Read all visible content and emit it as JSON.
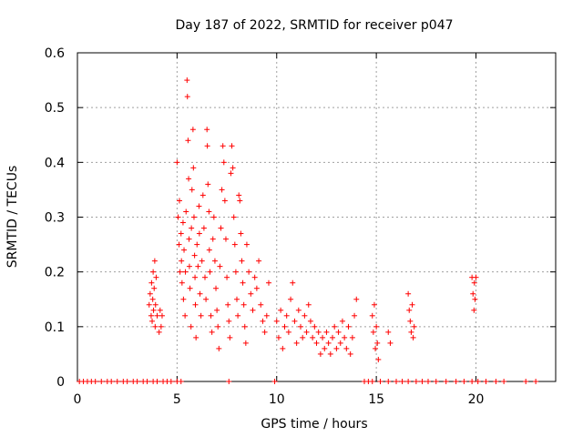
{
  "chart_data": {
    "type": "scatter",
    "title": "Day 187 of 2022, SRMTID for receiver p047",
    "xlabel": "GPS time / hours",
    "ylabel": "SRMTID / TECUs",
    "xlim": [
      0,
      24
    ],
    "ylim": [
      0,
      0.6
    ],
    "xticks": [
      0,
      5,
      10,
      15,
      20
    ],
    "xtick_labels": [
      "0",
      "5",
      "10",
      "15",
      "20"
    ],
    "yticks": [
      0,
      0.1,
      0.2,
      0.3,
      0.4,
      0.5,
      0.6
    ],
    "ytick_labels": [
      "0",
      "0.1",
      "0.2",
      "0.3",
      "0.4",
      "0.5",
      "0.6"
    ],
    "grid": true,
    "marker": "+",
    "color": "#ff0000",
    "series": [
      {
        "name": "SRMTID",
        "points": [
          [
            0.1,
            0
          ],
          [
            0.3,
            0
          ],
          [
            0.5,
            0
          ],
          [
            0.7,
            0
          ],
          [
            0.9,
            0
          ],
          [
            1.2,
            0
          ],
          [
            1.5,
            0
          ],
          [
            1.7,
            0
          ],
          [
            2.0,
            0
          ],
          [
            2.3,
            0
          ],
          [
            2.5,
            0
          ],
          [
            2.8,
            0
          ],
          [
            3.0,
            0
          ],
          [
            3.3,
            0
          ],
          [
            3.5,
            0
          ],
          [
            3.8,
            0
          ],
          [
            4.0,
            0
          ],
          [
            4.3,
            0
          ],
          [
            4.5,
            0
          ],
          [
            4.7,
            0
          ],
          [
            5.0,
            0
          ],
          [
            5.2,
            0
          ],
          [
            7.6,
            0
          ],
          [
            9.9,
            0
          ],
          [
            14.4,
            0
          ],
          [
            14.6,
            0
          ],
          [
            14.8,
            0
          ],
          [
            15.2,
            0
          ],
          [
            15.6,
            0
          ],
          [
            16.0,
            0
          ],
          [
            16.3,
            0
          ],
          [
            16.6,
            0
          ],
          [
            17.0,
            0
          ],
          [
            17.3,
            0
          ],
          [
            17.6,
            0
          ],
          [
            18.0,
            0
          ],
          [
            18.5,
            0
          ],
          [
            19.0,
            0
          ],
          [
            19.4,
            0
          ],
          [
            19.8,
            0
          ],
          [
            20.1,
            0
          ],
          [
            20.5,
            0
          ],
          [
            21.0,
            0
          ],
          [
            21.4,
            0
          ],
          [
            22.5,
            0
          ],
          [
            23.0,
            0
          ],
          [
            3.6,
            0.14
          ],
          [
            3.65,
            0.16
          ],
          [
            3.7,
            0.12
          ],
          [
            3.72,
            0.18
          ],
          [
            3.75,
            0.11
          ],
          [
            3.78,
            0.15
          ],
          [
            3.8,
            0.2
          ],
          [
            3.82,
            0.13
          ],
          [
            3.85,
            0.17
          ],
          [
            3.88,
            0.22
          ],
          [
            3.9,
            0.1
          ],
          [
            3.92,
            0.14
          ],
          [
            3.95,
            0.19
          ],
          [
            4.0,
            0.12
          ],
          [
            4.1,
            0.09
          ],
          [
            4.15,
            0.13
          ],
          [
            4.2,
            0.1
          ],
          [
            4.25,
            0.12
          ],
          [
            5.0,
            0.4
          ],
          [
            5.05,
            0.3
          ],
          [
            5.1,
            0.25
          ],
          [
            5.12,
            0.33
          ],
          [
            5.15,
            0.2
          ],
          [
            5.2,
            0.27
          ],
          [
            5.22,
            0.22
          ],
          [
            5.25,
            0.18
          ],
          [
            5.3,
            0.29
          ],
          [
            5.32,
            0.15
          ],
          [
            5.35,
            0.24
          ],
          [
            5.4,
            0.12
          ],
          [
            5.42,
            0.2
          ],
          [
            5.45,
            0.31
          ],
          [
            5.5,
            0.55
          ],
          [
            5.52,
            0.52
          ],
          [
            5.55,
            0.44
          ],
          [
            5.58,
            0.37
          ],
          [
            5.6,
            0.26
          ],
          [
            5.62,
            0.21
          ],
          [
            5.65,
            0.17
          ],
          [
            5.7,
            0.1
          ],
          [
            5.72,
            0.28
          ],
          [
            5.75,
            0.35
          ],
          [
            5.8,
            0.46
          ],
          [
            5.82,
            0.39
          ],
          [
            5.85,
            0.3
          ],
          [
            5.88,
            0.23
          ],
          [
            5.9,
            0.19
          ],
          [
            5.92,
            0.14
          ],
          [
            5.95,
            0.08
          ],
          [
            6.0,
            0.25
          ],
          [
            6.05,
            0.21
          ],
          [
            6.1,
            0.32
          ],
          [
            6.12,
            0.27
          ],
          [
            6.15,
            0.16
          ],
          [
            6.2,
            0.12
          ],
          [
            6.25,
            0.22
          ],
          [
            6.3,
            0.34
          ],
          [
            6.35,
            0.28
          ],
          [
            6.4,
            0.19
          ],
          [
            6.45,
            0.15
          ],
          [
            6.5,
            0.46
          ],
          [
            6.52,
            0.43
          ],
          [
            6.55,
            0.36
          ],
          [
            6.6,
            0.31
          ],
          [
            6.62,
            0.24
          ],
          [
            6.65,
            0.2
          ],
          [
            6.7,
            0.12
          ],
          [
            6.75,
            0.09
          ],
          [
            6.8,
            0.26
          ],
          [
            6.85,
            0.3
          ],
          [
            6.9,
            0.22
          ],
          [
            6.95,
            0.17
          ],
          [
            7.0,
            0.13
          ],
          [
            7.05,
            0.1
          ],
          [
            7.1,
            0.06
          ],
          [
            7.15,
            0.21
          ],
          [
            7.2,
            0.28
          ],
          [
            7.25,
            0.35
          ],
          [
            7.3,
            0.43
          ],
          [
            7.35,
            0.4
          ],
          [
            7.4,
            0.33
          ],
          [
            7.45,
            0.26
          ],
          [
            7.5,
            0.19
          ],
          [
            7.55,
            0.14
          ],
          [
            7.6,
            0.11
          ],
          [
            7.65,
            0.08
          ],
          [
            7.7,
            0.38
          ],
          [
            7.75,
            0.43
          ],
          [
            7.8,
            0.39
          ],
          [
            7.85,
            0.3
          ],
          [
            7.9,
            0.25
          ],
          [
            7.95,
            0.2
          ],
          [
            8.0,
            0.15
          ],
          [
            8.05,
            0.12
          ],
          [
            8.1,
            0.34
          ],
          [
            8.15,
            0.33
          ],
          [
            8.2,
            0.27
          ],
          [
            8.25,
            0.22
          ],
          [
            8.3,
            0.18
          ],
          [
            8.35,
            0.14
          ],
          [
            8.4,
            0.1
          ],
          [
            8.45,
            0.07
          ],
          [
            8.5,
            0.25
          ],
          [
            8.6,
            0.2
          ],
          [
            8.7,
            0.16
          ],
          [
            8.8,
            0.13
          ],
          [
            8.9,
            0.19
          ],
          [
            9.0,
            0.17
          ],
          [
            9.1,
            0.22
          ],
          [
            9.2,
            0.14
          ],
          [
            9.3,
            0.11
          ],
          [
            9.4,
            0.09
          ],
          [
            9.5,
            0.12
          ],
          [
            9.6,
            0.18
          ],
          [
            10.0,
            0.11
          ],
          [
            10.1,
            0.08
          ],
          [
            10.2,
            0.13
          ],
          [
            10.3,
            0.06
          ],
          [
            10.4,
            0.1
          ],
          [
            10.5,
            0.12
          ],
          [
            10.6,
            0.09
          ],
          [
            10.7,
            0.15
          ],
          [
            10.8,
            0.18
          ],
          [
            10.9,
            0.11
          ],
          [
            11.0,
            0.07
          ],
          [
            11.1,
            0.13
          ],
          [
            11.2,
            0.1
          ],
          [
            11.3,
            0.08
          ],
          [
            11.4,
            0.12
          ],
          [
            11.5,
            0.09
          ],
          [
            11.6,
            0.14
          ],
          [
            11.7,
            0.11
          ],
          [
            11.8,
            0.08
          ],
          [
            11.9,
            0.1
          ],
          [
            12.0,
            0.07
          ],
          [
            12.1,
            0.09
          ],
          [
            12.2,
            0.05
          ],
          [
            12.3,
            0.08
          ],
          [
            12.4,
            0.06
          ],
          [
            12.5,
            0.09
          ],
          [
            12.6,
            0.07
          ],
          [
            12.7,
            0.05
          ],
          [
            12.8,
            0.08
          ],
          [
            12.9,
            0.1
          ],
          [
            13.0,
            0.06
          ],
          [
            13.1,
            0.09
          ],
          [
            13.2,
            0.07
          ],
          [
            13.3,
            0.11
          ],
          [
            13.4,
            0.08
          ],
          [
            13.5,
            0.06
          ],
          [
            13.6,
            0.1
          ],
          [
            13.7,
            0.05
          ],
          [
            13.8,
            0.08
          ],
          [
            13.9,
            0.12
          ],
          [
            14.0,
            0.15
          ],
          [
            14.8,
            0.12
          ],
          [
            14.85,
            0.09
          ],
          [
            14.9,
            0.14
          ],
          [
            14.95,
            0.06
          ],
          [
            15.0,
            0.1
          ],
          [
            15.05,
            0.07
          ],
          [
            15.1,
            0.04
          ],
          [
            15.6,
            0.09
          ],
          [
            15.7,
            0.07
          ],
          [
            16.6,
            0.16
          ],
          [
            16.65,
            0.13
          ],
          [
            16.7,
            0.11
          ],
          [
            16.75,
            0.09
          ],
          [
            16.8,
            0.14
          ],
          [
            16.85,
            0.08
          ],
          [
            16.9,
            0.1
          ],
          [
            19.8,
            0.19
          ],
          [
            19.85,
            0.16
          ],
          [
            19.9,
            0.13
          ],
          [
            19.92,
            0.18
          ],
          [
            19.95,
            0.15
          ],
          [
            20.0,
            0.19
          ]
        ]
      }
    ]
  }
}
